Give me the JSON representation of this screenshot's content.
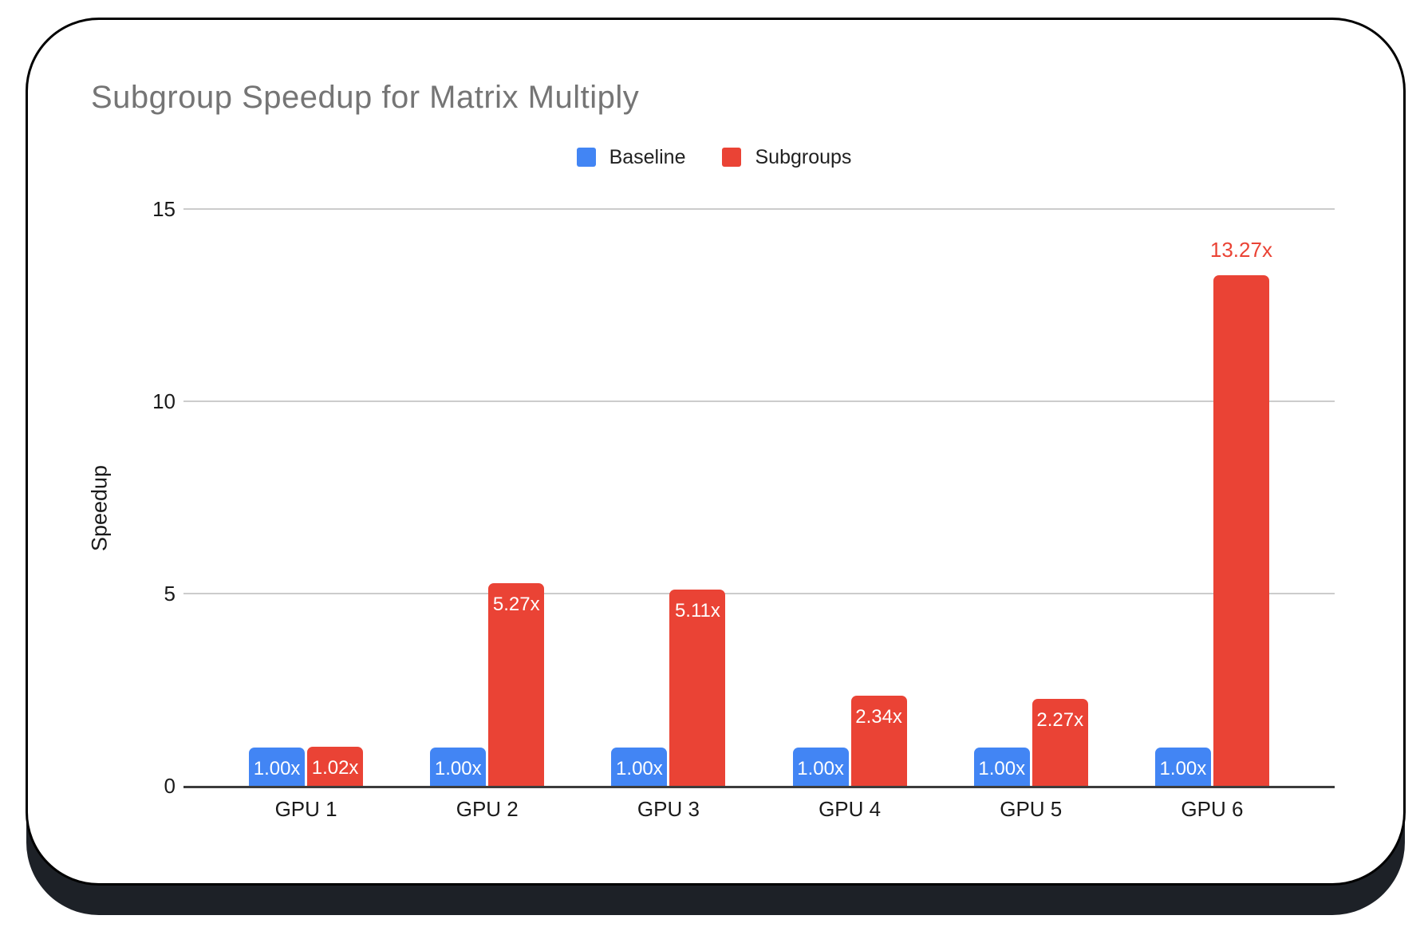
{
  "frame": {
    "card_background": "#ffffff",
    "border_color": "#000000",
    "shadow_color": "#1d2127"
  },
  "chart_data": {
    "type": "bar",
    "title": "Subgroup Speedup for Matrix Multiply",
    "title_color": "#757575",
    "xlabel": "",
    "ylabel": "Speedup",
    "categories": [
      "GPU 1",
      "GPU 2",
      "GPU 3",
      "GPU 4",
      "GPU 5",
      "GPU 6"
    ],
    "series": [
      {
        "name": "Baseline",
        "color": "#4285F4",
        "values": [
          1.0,
          1.0,
          1.0,
          1.0,
          1.0,
          1.0
        ],
        "labels": [
          "1.00x",
          "1.00x",
          "1.00x",
          "1.00x",
          "1.00x",
          "1.00x"
        ],
        "label_positions": [
          "inside",
          "inside",
          "inside",
          "inside",
          "inside",
          "inside"
        ]
      },
      {
        "name": "Subgroups",
        "color": "#EA4335",
        "values": [
          1.02,
          5.27,
          5.11,
          2.34,
          2.27,
          13.27
        ],
        "labels": [
          "1.02x",
          "5.27x",
          "5.11x",
          "2.34x",
          "2.27x",
          "13.27x"
        ],
        "label_positions": [
          "inside",
          "inside",
          "inside",
          "inside",
          "inside",
          "above"
        ]
      }
    ],
    "yticks": [
      0,
      5,
      10,
      15
    ],
    "ytick_labels": [
      "0",
      "5",
      "10",
      "15"
    ],
    "ylim": [
      0,
      15
    ],
    "grid": true,
    "gridline_color": "#cccccc",
    "axis_line_color": "#3c3c3c",
    "bar_label_color_inside": "#ffffff",
    "legend_position": "top-center"
  }
}
